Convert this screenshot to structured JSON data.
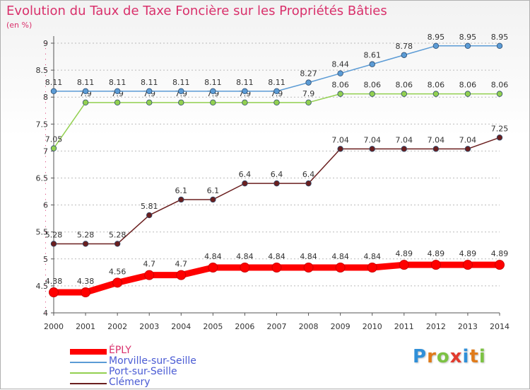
{
  "chart_data": {
    "type": "line",
    "title": "Evolution du Taux de Taxe Foncière sur les Propriétés Bâties",
    "subtitle": "(en %)",
    "x": [
      2000,
      2001,
      2002,
      2003,
      2004,
      2005,
      2006,
      2007,
      2008,
      2009,
      2010,
      2011,
      2012,
      2013,
      2014
    ],
    "ylim": [
      4,
      9
    ],
    "yticks": [
      4,
      4.5,
      5,
      5.5,
      6,
      6.5,
      7,
      7.5,
      8,
      8.5,
      9
    ],
    "grid": "horizontal dashed",
    "legend_position": "bottom-left",
    "series": [
      {
        "name": "ÉPLY",
        "color": "#ff0000",
        "values": [
          4.38,
          4.38,
          4.56,
          4.7,
          4.7,
          4.84,
          4.84,
          4.84,
          4.84,
          4.84,
          4.84,
          4.89,
          4.89,
          4.89,
          4.89
        ],
        "labels": [
          "4.38",
          "4.38",
          "4.56",
          "4.7",
          "4.7",
          "4.84",
          "4.84",
          "4.84",
          "4.84",
          "4.84",
          "4.84",
          "4.89",
          "4.89",
          "4.89",
          "4.89"
        ]
      },
      {
        "name": "Morville-sur-Seille",
        "color": "#5b9bd5",
        "values": [
          8.11,
          8.11,
          8.11,
          8.11,
          8.11,
          8.11,
          8.11,
          8.11,
          8.27,
          8.44,
          8.61,
          8.78,
          8.95,
          8.95,
          8.95
        ],
        "labels": [
          "8.11",
          "8.11",
          "8.11",
          "8.11",
          "8.11",
          "8.11",
          "8.11",
          "8.11",
          "8.27",
          "8.44",
          "8.61",
          "8.78",
          "8.95",
          "8.95",
          "8.95"
        ]
      },
      {
        "name": "Port-sur-Seille",
        "color": "#92d050",
        "values": [
          7.05,
          7.9,
          7.9,
          7.9,
          7.9,
          7.9,
          7.9,
          7.9,
          7.9,
          8.06,
          8.06,
          8.06,
          8.06,
          8.06,
          8.06
        ],
        "labels": [
          "7.05",
          "7.9",
          "7.9",
          "7.9",
          "7.9",
          "7.9",
          "7.9",
          "7.9",
          "7.9",
          "8.06",
          "8.06",
          "8.06",
          "8.06",
          "8.06",
          "8.06"
        ]
      },
      {
        "name": "Clémery",
        "color": "#6b1f1f",
        "values": [
          5.28,
          5.28,
          5.28,
          5.81,
          6.1,
          6.1,
          6.4,
          6.4,
          6.4,
          7.04,
          7.04,
          7.04,
          7.04,
          7.04,
          7.25
        ],
        "labels": [
          "5.28",
          "5.28",
          "5.28",
          "5.81",
          "6.1",
          "6.1",
          "6.4",
          "6.4",
          "6.4",
          "7.04",
          "7.04",
          "7.04",
          "7.04",
          "7.04",
          "7.25"
        ]
      }
    ]
  },
  "legend": {
    "items": [
      {
        "label": "ÉPLY",
        "color": "#ff0000"
      },
      {
        "label": "Morville-sur-Seille",
        "color": "#5b9bd5"
      },
      {
        "label": "Port-sur-Seille",
        "color": "#92d050"
      },
      {
        "label": "Clémery",
        "color": "#6b1f1f"
      }
    ]
  },
  "logo": {
    "letters": [
      "P",
      "r",
      "o",
      "x",
      "i",
      "t",
      "i"
    ],
    "colors": [
      "#2f8fd8",
      "#e07b1a",
      "#7cc243",
      "#e23b2e",
      "#2f8fd8",
      "#e07b1a",
      "#7cc243"
    ]
  },
  "colors": {
    "title": "#d9306b",
    "axis": "#555555",
    "grid": "#bbbbbb"
  }
}
